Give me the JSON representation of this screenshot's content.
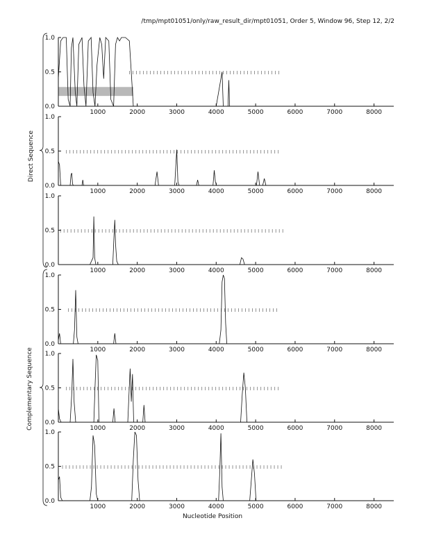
{
  "header": {
    "title": "/tmp/mpt01051/only/raw_result_dir/mpt01051, Order 5, Window 96, Step 12, 2/2"
  },
  "labels": {
    "direct": "Direct Sequence",
    "complementary": "Complementary Sequence",
    "xlabel": "Nucleotide Position"
  },
  "colors": {
    "line": "#111111",
    "ticks": "#666666",
    "highlight": "#b8b8b8",
    "axis": "#111111"
  },
  "chart_data": [
    {
      "type": "line",
      "panel": 1,
      "group": "Direct Sequence",
      "xlim": [
        0,
        8500
      ],
      "ylim": [
        0,
        1
      ],
      "yticks": [
        "0.0",
        "0.5",
        "1.0"
      ],
      "xticks": [
        1000,
        2000,
        3000,
        4000,
        5000,
        6000,
        7000,
        8000
      ],
      "highlight": {
        "x": [
          0,
          1900
        ],
        "y": [
          0.15,
          0.28
        ]
      },
      "tick_row": {
        "y": 0.49,
        "x_start": 1800,
        "x_end": 5600
      },
      "x": [
        0,
        60,
        120,
        200,
        250,
        300,
        330,
        370,
        430,
        470,
        520,
        600,
        650,
        700,
        760,
        830,
        880,
        930,
        980,
        1050,
        1100,
        1150,
        1200,
        1280,
        1330,
        1400,
        1450,
        1500,
        1550,
        1600,
        1700,
        1800,
        1900,
        2000,
        3000,
        4000,
        4150,
        4180,
        4210,
        4300,
        4320,
        4340,
        5000,
        8500
      ],
      "values": [
        0.4,
        0.95,
        1.0,
        1.0,
        0.1,
        0.0,
        0.85,
        1.0,
        0.2,
        0.0,
        0.9,
        1.0,
        0.3,
        0.0,
        0.95,
        1.0,
        0.2,
        0.0,
        0.6,
        1.0,
        0.9,
        0.4,
        1.0,
        0.95,
        0.1,
        0.0,
        0.9,
        1.0,
        0.95,
        1.0,
        1.0,
        0.95,
        0.0,
        0.0,
        0.0,
        0.0,
        0.5,
        0.0,
        0.0,
        0.0,
        0.38,
        0.0,
        0.0,
        0.0
      ]
    },
    {
      "type": "line",
      "panel": 2,
      "group": "Direct Sequence",
      "xlim": [
        0,
        8500
      ],
      "ylim": [
        0,
        1
      ],
      "yticks": [
        "0.0",
        "0.5",
        "1.0"
      ],
      "xticks": [
        1000,
        2000,
        3000,
        4000,
        5000,
        6000,
        7000,
        8000
      ],
      "tick_row": {
        "y": 0.49,
        "x_start": 200,
        "x_end": 5600
      },
      "x": [
        0,
        30,
        60,
        120,
        300,
        320,
        340,
        360,
        380,
        600,
        620,
        640,
        2450,
        2500,
        2540,
        2580,
        2950,
        3000,
        3030,
        3060,
        3500,
        3530,
        3560,
        3920,
        3950,
        3980,
        4010,
        5020,
        5060,
        5100,
        5180,
        5220,
        5260,
        8500
      ],
      "values": [
        0.35,
        0.3,
        0.0,
        0.0,
        0.0,
        0.15,
        0.18,
        0.02,
        0.0,
        0.0,
        0.08,
        0.0,
        0.0,
        0.2,
        0.0,
        0.0,
        0.0,
        0.52,
        0.05,
        0.0,
        0.0,
        0.08,
        0.0,
        0.0,
        0.22,
        0.05,
        0.0,
        0.0,
        0.2,
        0.0,
        0.0,
        0.1,
        0.0,
        0.0
      ]
    },
    {
      "type": "line",
      "panel": 3,
      "group": "Direct Sequence",
      "xlim": [
        0,
        8500
      ],
      "ylim": [
        0,
        1
      ],
      "yticks": [
        "0.0",
        "0.5",
        "1.0"
      ],
      "xticks": [
        1000,
        2000,
        3000,
        4000,
        5000,
        6000,
        7000,
        8000
      ],
      "tick_row": {
        "y": 0.49,
        "x_start": 50,
        "x_end": 5700
      },
      "x": [
        0,
        800,
        840,
        880,
        900,
        920,
        950,
        1000,
        1380,
        1410,
        1430,
        1450,
        1480,
        1520,
        4600,
        4640,
        4680,
        4720,
        8500
      ],
      "values": [
        0.0,
        0.0,
        0.05,
        0.1,
        0.7,
        0.1,
        0.0,
        0.0,
        0.0,
        0.4,
        0.65,
        0.3,
        0.05,
        0.0,
        0.0,
        0.1,
        0.08,
        0.0,
        0.0
      ]
    },
    {
      "type": "line",
      "panel": 4,
      "group": "Complementary Sequence",
      "xlim": [
        0,
        8500
      ],
      "ylim": [
        0,
        1
      ],
      "yticks": [
        "0.0",
        "0.5",
        "1.0"
      ],
      "xticks": [
        1000,
        2000,
        3000,
        4000,
        5000,
        6000,
        7000,
        8000
      ],
      "tick_row": {
        "y": 0.49,
        "x_start": 250,
        "x_end": 5600
      },
      "x": [
        0,
        30,
        60,
        100,
        380,
        410,
        440,
        470,
        500,
        1400,
        1430,
        1460,
        4080,
        4120,
        4150,
        4180,
        4210,
        4240,
        4270,
        8500
      ],
      "values": [
        0.05,
        0.15,
        0.0,
        0.0,
        0.0,
        0.2,
        0.78,
        0.1,
        0.0,
        0.0,
        0.15,
        0.0,
        0.0,
        0.2,
        0.9,
        1.0,
        0.95,
        0.3,
        0.0,
        0.0
      ]
    },
    {
      "type": "line",
      "panel": 5,
      "group": "Complementary Sequence",
      "xlim": [
        0,
        8500
      ],
      "ylim": [
        0,
        1
      ],
      "yticks": [
        "0.0",
        "0.5",
        "1.0"
      ],
      "xticks": [
        1000,
        2000,
        3000,
        4000,
        5000,
        6000,
        7000,
        8000
      ],
      "tick_row": {
        "y": 0.49,
        "x_start": 200,
        "x_end": 5600
      },
      "x": [
        0,
        30,
        70,
        300,
        340,
        370,
        400,
        440,
        900,
        930,
        960,
        1000,
        1030,
        1380,
        1410,
        1440,
        1760,
        1790,
        1820,
        1850,
        1880,
        1910,
        2140,
        2170,
        2200,
        4620,
        4660,
        4700,
        4740,
        4780,
        8500
      ],
      "values": [
        0.2,
        0.05,
        0.0,
        0.0,
        0.4,
        0.92,
        0.3,
        0.0,
        0.0,
        0.5,
        0.98,
        0.9,
        0.0,
        0.0,
        0.2,
        0.0,
        0.0,
        0.4,
        0.78,
        0.3,
        0.7,
        0.0,
        0.0,
        0.25,
        0.0,
        0.0,
        0.4,
        0.72,
        0.5,
        0.0,
        0.0
      ]
    },
    {
      "type": "line",
      "panel": 6,
      "group": "Complementary Sequence",
      "xlim": [
        0,
        8500
      ],
      "ylim": [
        0,
        1
      ],
      "yticks": [
        "0.0",
        "0.5",
        "1.0"
      ],
      "xticks": [
        1000,
        2000,
        3000,
        4000,
        5000,
        6000,
        7000,
        8000
      ],
      "tick_row": {
        "y": 0.49,
        "x_start": 100,
        "x_end": 5700
      },
      "x": [
        0,
        30,
        60,
        100,
        800,
        840,
        880,
        920,
        960,
        1000,
        1860,
        1900,
        1940,
        1980,
        2020,
        2060,
        4060,
        4090,
        4120,
        4150,
        4180,
        4850,
        4890,
        4930,
        4970,
        5010,
        8500
      ],
      "values": [
        0.3,
        0.35,
        0.05,
        0.0,
        0.0,
        0.2,
        0.95,
        0.8,
        0.1,
        0.0,
        0.0,
        0.6,
        1.0,
        0.95,
        0.3,
        0.0,
        0.0,
        0.4,
        0.98,
        0.2,
        0.0,
        0.0,
        0.3,
        0.6,
        0.4,
        0.0,
        0.0
      ]
    }
  ]
}
